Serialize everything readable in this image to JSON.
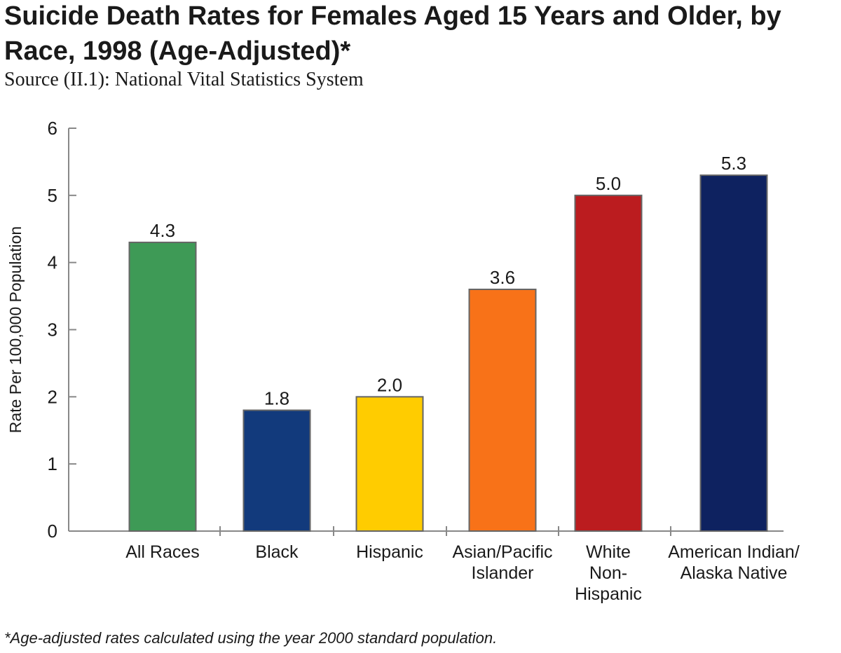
{
  "title": "Suicide Death Rates for Females Aged 15 Years and Older, by Race, 1998 (Age-Adjusted)*",
  "source": "Source  (II.1):  National Vital Statistics System",
  "footnote": "*Age-adjusted rates calculated using the year 2000 standard population.",
  "chart_data": {
    "type": "bar",
    "title": "Suicide Death Rates for Females Aged 15 Years and Older, by Race, 1998 (Age-Adjusted)*",
    "xlabel": "",
    "ylabel": "Rate Per 100,000 Population",
    "ylim": [
      0,
      6
    ],
    "yticks": [
      "0",
      "1",
      "2",
      "3",
      "4",
      "5",
      "6"
    ],
    "grid": false,
    "categories": [
      [
        "All Races"
      ],
      [
        "Black"
      ],
      [
        "Hispanic"
      ],
      [
        "Asian/Pacific",
        "Islander"
      ],
      [
        "White",
        "Non-",
        "Hispanic"
      ],
      [
        "American Indian/",
        "Alaska Native"
      ]
    ],
    "values": [
      4.3,
      1.8,
      2.0,
      3.6,
      5.0,
      5.3
    ],
    "value_labels": [
      "4.3",
      "1.8",
      "2.0",
      "3.6",
      "5.0",
      "5.3"
    ],
    "colors": [
      "#3e9a56",
      "#123a7c",
      "#ffcc00",
      "#f87218",
      "#bb1c1f",
      "#0e2260"
    ]
  }
}
